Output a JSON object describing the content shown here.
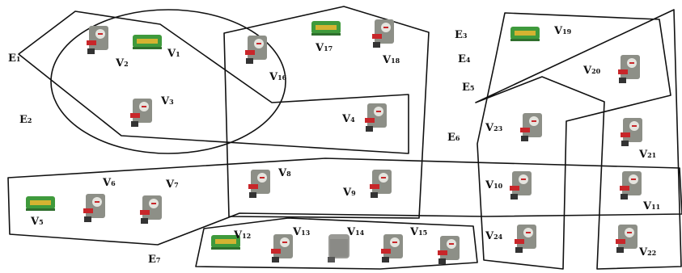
{
  "diagram": {
    "type": "hypergraph",
    "vertices": [
      {
        "id": "v1",
        "base": "V",
        "sub": "1",
        "icon": "green-machine-icon"
      },
      {
        "id": "v2",
        "base": "V",
        "sub": "2",
        "icon": "gray-machine-icon"
      },
      {
        "id": "v3",
        "base": "V",
        "sub": "3",
        "icon": "gray-machine-icon"
      },
      {
        "id": "v4",
        "base": "V",
        "sub": "4",
        "icon": "gray-machine-icon"
      },
      {
        "id": "v5",
        "base": "V",
        "sub": "5",
        "icon": "green-machine-icon"
      },
      {
        "id": "v6",
        "base": "V",
        "sub": "6",
        "icon": "gray-machine-icon"
      },
      {
        "id": "v7",
        "base": "V",
        "sub": "7",
        "icon": "gray-machine-icon"
      },
      {
        "id": "v8",
        "base": "V",
        "sub": "8",
        "icon": "gray-machine-icon"
      },
      {
        "id": "v9",
        "base": "V",
        "sub": "9",
        "icon": "gray-machine-icon"
      },
      {
        "id": "v10",
        "base": "V",
        "sub": "10",
        "icon": "gray-machine-icon"
      },
      {
        "id": "v11",
        "base": "V",
        "sub": "11",
        "icon": "gray-machine-icon"
      },
      {
        "id": "v12",
        "base": "V",
        "sub": "12",
        "icon": "green-machine-icon"
      },
      {
        "id": "v13",
        "base": "V",
        "sub": "13",
        "icon": "gray-machine-icon"
      },
      {
        "id": "v14",
        "base": "V",
        "sub": "14",
        "icon": "blurred-machine-icon"
      },
      {
        "id": "v15",
        "base": "V",
        "sub": "15",
        "icon": "gray-machine-icon"
      },
      {
        "id": "v16",
        "base": "V",
        "sub": "16",
        "icon": "gray-machine-icon"
      },
      {
        "id": "v17",
        "base": "V",
        "sub": "17",
        "icon": "green-machine-icon"
      },
      {
        "id": "v18",
        "base": "V",
        "sub": "18",
        "icon": "gray-machine-icon"
      },
      {
        "id": "v19",
        "base": "V",
        "sub": "19",
        "icon": "green-machine-icon"
      },
      {
        "id": "v20",
        "base": "V",
        "sub": "20",
        "icon": "gray-machine-icon"
      },
      {
        "id": "v21",
        "base": "V",
        "sub": "21",
        "icon": "gray-machine-icon"
      },
      {
        "id": "v22",
        "base": "V",
        "sub": "22",
        "icon": "gray-machine-icon"
      },
      {
        "id": "v23",
        "base": "V",
        "sub": "23",
        "icon": "gray-machine-icon"
      },
      {
        "id": "v24",
        "base": "V",
        "sub": "24",
        "icon": "gray-machine-icon"
      }
    ],
    "hyperedges": [
      {
        "id": "e1",
        "base": "E",
        "sub": "1"
      },
      {
        "id": "e2",
        "base": "E",
        "sub": "2"
      },
      {
        "id": "e3",
        "base": "E",
        "sub": "3"
      },
      {
        "id": "e4",
        "base": "E",
        "sub": "4"
      },
      {
        "id": "e5",
        "base": "E",
        "sub": "5"
      },
      {
        "id": "e6",
        "base": "E",
        "sub": "6"
      },
      {
        "id": "e7",
        "base": "E",
        "sub": "7"
      }
    ]
  },
  "colors": {
    "line": "#111111",
    "green_machine": "#3f9a3c",
    "gray_machine": "#8d8f87",
    "red_accent": "#c8262a"
  }
}
